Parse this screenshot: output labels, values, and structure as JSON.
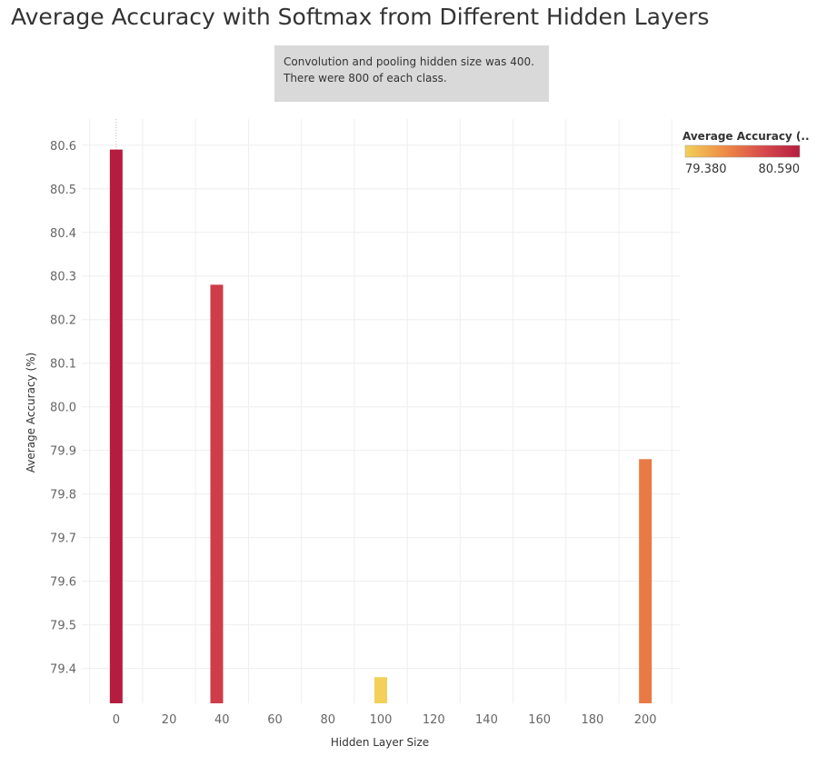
{
  "chart_data": {
    "type": "bar",
    "title": "Average Accuracy with Softmax from Different Hidden Layers",
    "annotation": [
      "Convolution and pooling hidden size was 400.",
      "There were 800 of each class."
    ],
    "xlabel": "Hidden Layer Size",
    "ylabel": "Average Accuracy (%)",
    "x_ticks": [
      "0",
      "20",
      "40",
      "60",
      "80",
      "100",
      "120",
      "140",
      "160",
      "180",
      "200"
    ],
    "y_ticks": [
      "79.4",
      "79.5",
      "79.6",
      "79.7",
      "79.8",
      "79.9",
      "80.0",
      "80.1",
      "80.2",
      "80.3",
      "80.4",
      "80.5",
      "80.6"
    ],
    "xlim": [
      -13,
      213
    ],
    "ylim": [
      79.32,
      80.66
    ],
    "x": [
      0,
      38,
      100,
      200
    ],
    "values": [
      80.59,
      80.28,
      79.38,
      79.88
    ],
    "legend": {
      "title": "Average Accuracy (..",
      "min_label": "79.380",
      "max_label": "80.590",
      "min": 79.38,
      "max": 80.59,
      "colors": [
        "#f2d05a",
        "#ee8a45",
        "#d6474b",
        "#b51d40"
      ]
    },
    "grid": true
  }
}
